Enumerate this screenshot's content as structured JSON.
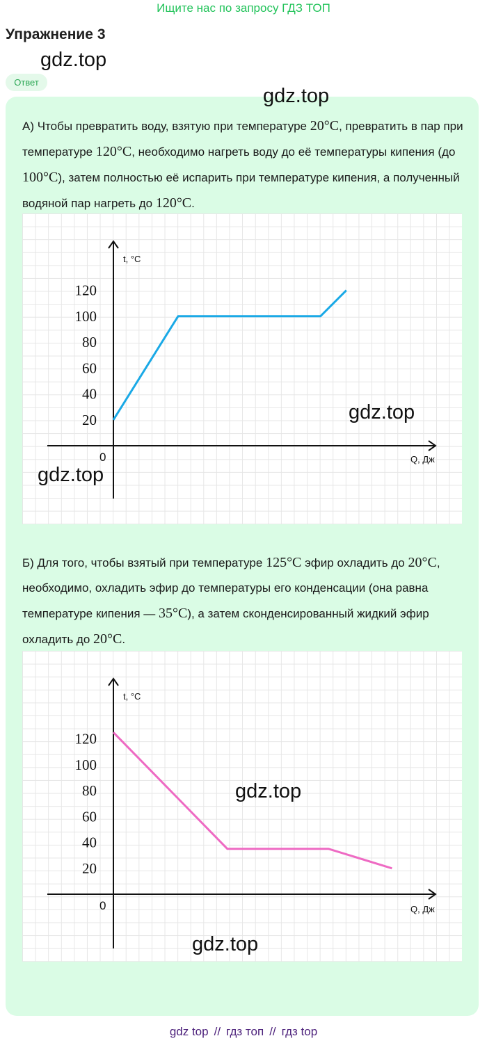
{
  "banner": "Ищите нас по запросу ГДЗ ТОП",
  "title": "Упражнение 3",
  "watermark": "gdz.top",
  "answer_label": "Ответ",
  "part_a": {
    "segments": [
      {
        "t": "А) Чтобы превратить воду, взятую при температуре "
      },
      {
        "m": "20°C"
      },
      {
        "t": ", превратить в пар при температуре "
      },
      {
        "m": "120°C"
      },
      {
        "t": ", необходимо нагреть воду до её температуры кипения (до "
      },
      {
        "m": "100°C"
      },
      {
        "t": "), затем полностью её испарить при температуре кипения, а полученный водяной пар нагреть до "
      },
      {
        "m": "120°C"
      },
      {
        "t": "."
      }
    ]
  },
  "part_b": {
    "segments": [
      {
        "t": "Б) Для того, чтобы взятый при температуре "
      },
      {
        "m": "125°C"
      },
      {
        "t": " эфир охладить до "
      },
      {
        "m": "20°C"
      },
      {
        "t": ", необходимо, охладить эфир до температуры его конденсации (она равна температуре кипения — "
      },
      {
        "m": "35°C"
      },
      {
        "t": "), а затем сконденсированный жидкий эфир охладить до "
      },
      {
        "m": "20°C"
      },
      {
        "t": "."
      }
    ]
  },
  "chart_data": [
    {
      "type": "line",
      "ylabel": "t, °C",
      "xlabel": "Q, Дж",
      "origin_label": "0",
      "yticks": [
        20,
        40,
        60,
        80,
        100,
        120
      ],
      "ylim": [
        0,
        130
      ],
      "xlim": [
        0,
        5
      ],
      "color": "#1aa9e6",
      "points": [
        [
          0,
          20
        ],
        [
          1,
          100
        ],
        [
          3.2,
          100
        ],
        [
          3.6,
          120
        ]
      ]
    },
    {
      "type": "line",
      "ylabel": "t, °C",
      "xlabel": "Q, Дж",
      "origin_label": "0",
      "yticks": [
        20,
        40,
        60,
        80,
        100,
        120
      ],
      "ylim": [
        0,
        130
      ],
      "xlim": [
        0,
        5
      ],
      "color": "#ee6ac3",
      "points": [
        [
          0,
          125
        ],
        [
          1.8,
          35
        ],
        [
          3.4,
          35
        ],
        [
          4.4,
          20
        ]
      ]
    }
  ],
  "footer": [
    "gdz top",
    "//",
    "гдз топ",
    "//",
    "гдз top"
  ]
}
